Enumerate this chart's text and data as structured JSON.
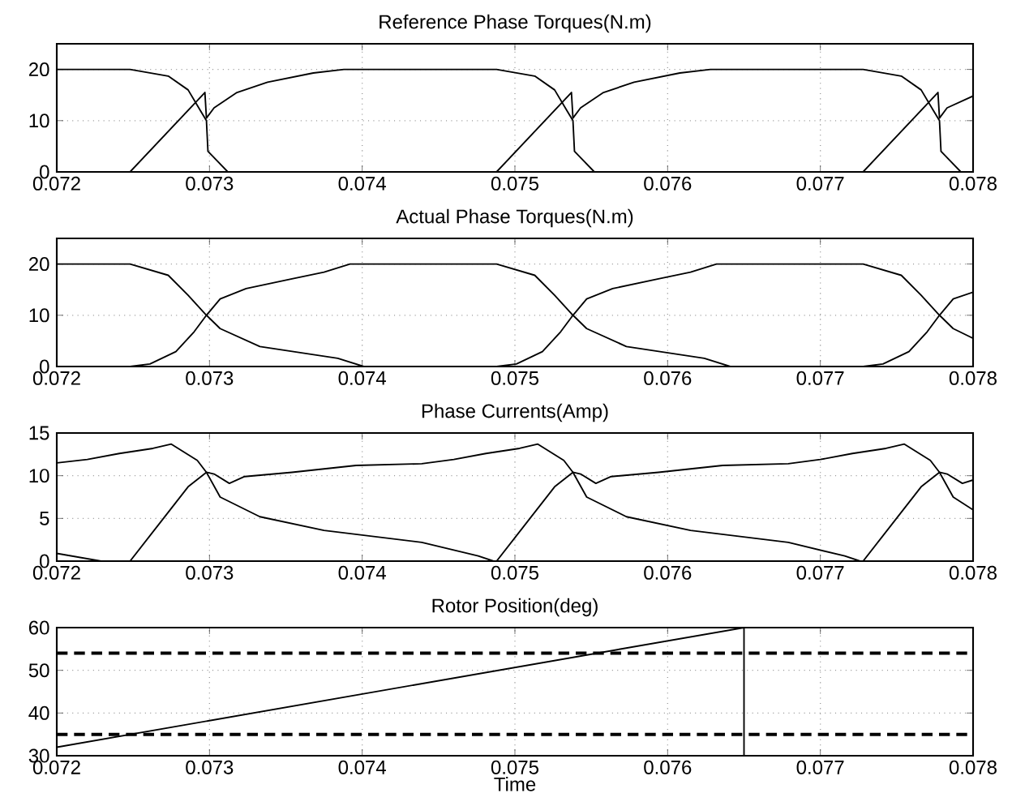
{
  "chart_data": [
    {
      "type": "line",
      "title": "Reference Phase Torques(N.m)",
      "xlim": [
        0.072,
        0.078
      ],
      "ylim": [
        0,
        25
      ],
      "xticks": [
        0.072,
        0.073,
        0.074,
        0.075,
        0.076,
        0.077,
        0.078
      ],
      "yticks": [
        0,
        10,
        20
      ],
      "grid": true,
      "series": [
        {
          "color": "#000000",
          "x": [
            0.072,
            0.07248,
            0.07273,
            0.07286,
            0.07294,
            0.07298,
            0.07299,
            0.07312,
            0.0752,
            0.07728,
            0.07777,
            0.07778,
            0.07783,
            0.078
          ],
          "values": [
            20,
            20,
            18.7,
            16,
            12,
            10,
            4,
            0,
            null,
            0,
            15.5,
            10.5,
            12.5,
            14.8
          ]
        },
        {
          "color": "#000000",
          "x": [
            0.07248,
            0.07297,
            0.07298,
            0.07303,
            0.07318,
            0.07338,
            0.07368,
            0.07388,
            0.07488,
            0.07513,
            0.07526,
            0.07534,
            0.07538,
            0.07539,
            0.07552
          ],
          "values": [
            0,
            15.5,
            10.5,
            12.5,
            15.5,
            17.5,
            19.3,
            20,
            20,
            18.7,
            16,
            12,
            10,
            4,
            0
          ]
        },
        {
          "color": "#000000",
          "x": [
            0.07488,
            0.07537,
            0.07538,
            0.07543,
            0.07558,
            0.07578,
            0.07608,
            0.07628,
            0.07728,
            0.07753,
            0.07766,
            0.07774,
            0.07778,
            0.07779,
            0.07792
          ],
          "values": [
            0,
            15.5,
            10.5,
            12.5,
            15.5,
            17.5,
            19.3,
            20,
            20,
            18.7,
            16,
            12,
            10,
            4,
            0
          ]
        }
      ]
    },
    {
      "type": "line",
      "title": "Actual Phase Torques(N.m)",
      "xlim": [
        0.072,
        0.078
      ],
      "ylim": [
        0,
        25
      ],
      "xticks": [
        0.072,
        0.073,
        0.074,
        0.075,
        0.076,
        0.077,
        0.078
      ],
      "yticks": [
        0,
        10,
        20
      ],
      "grid": true,
      "series": [
        {
          "color": "#000000",
          "x": [
            0.072,
            0.07248,
            0.07273,
            0.07286,
            0.07298,
            0.07307,
            0.07333,
            0.07384,
            0.07401,
            0.0756,
            0.07728,
            0.07741,
            0.07758,
            0.0777,
            0.07778,
            0.07787,
            0.078
          ],
          "values": [
            20,
            20,
            17.8,
            13.9,
            10,
            7.4,
            3.9,
            1.6,
            0,
            null,
            0,
            0.5,
            2.9,
            6.8,
            10,
            13.2,
            14.5
          ]
        },
        {
          "color": "#000000",
          "x": [
            0.07248,
            0.07261,
            0.07278,
            0.0729,
            0.07298,
            0.07307,
            0.07324,
            0.07354,
            0.07375,
            0.07392,
            0.07488,
            0.07513,
            0.07526,
            0.07538,
            0.07547,
            0.07573,
            0.07624,
            0.07641
          ],
          "values": [
            0,
            0.5,
            2.9,
            6.8,
            10,
            13.2,
            15.2,
            17.1,
            18.4,
            20,
            20,
            17.8,
            13.9,
            10,
            7.4,
            3.9,
            1.6,
            0
          ]
        },
        {
          "color": "#000000",
          "x": [
            0.07488,
            0.07501,
            0.07518,
            0.0753,
            0.07538,
            0.07547,
            0.07564,
            0.07594,
            0.07615,
            0.07632,
            0.07728,
            0.07753,
            0.07766,
            0.07778,
            0.07787,
            0.078
          ],
          "values": [
            0,
            0.5,
            2.9,
            6.8,
            10,
            13.2,
            15.2,
            17.1,
            18.4,
            20,
            20,
            17.8,
            13.9,
            10,
            7.4,
            5.5
          ]
        }
      ]
    },
    {
      "type": "line",
      "title": "Phase Currents(Amp)",
      "xlim": [
        0.072,
        0.078
      ],
      "ylim": [
        0,
        15
      ],
      "xticks": [
        0.072,
        0.073,
        0.074,
        0.075,
        0.076,
        0.077,
        0.078
      ],
      "yticks": [
        0,
        5,
        10,
        15
      ],
      "grid": true,
      "series": [
        {
          "color": "#000000",
          "x": [
            0.072,
            0.0722,
            0.07241,
            0.07263,
            0.07275,
            0.07292,
            0.07298,
            0.07307,
            0.07333,
            0.07375,
            0.07439,
            0.07476,
            0.07486,
            0.0761,
            0.07728,
            0.07749,
            0.07766,
            0.07778,
            0.07783,
            0.07793,
            0.078
          ],
          "values": [
            11.5,
            11.9,
            12.6,
            13.2,
            13.7,
            11.8,
            10.4,
            7.5,
            5.2,
            3.6,
            2.2,
            0.6,
            0,
            null,
            0,
            4.8,
            8.7,
            10.4,
            10.2,
            9.1,
            9.5
          ]
        },
        {
          "color": "#000000",
          "x": [
            0.07248,
            0.07269,
            0.07286,
            0.07298,
            0.07303,
            0.07313,
            0.07323,
            0.07354,
            0.07396,
            0.07439,
            0.0746,
            0.07481,
            0.07503,
            0.07515,
            0.07532,
            0.07538,
            0.07547,
            0.07573,
            0.07615,
            0.07679,
            0.07716,
            0.07726
          ],
          "values": [
            0,
            4.8,
            8.7,
            10.4,
            10.2,
            9.1,
            9.9,
            10.4,
            11.2,
            11.4,
            11.9,
            12.6,
            13.2,
            13.7,
            11.8,
            10.4,
            7.5,
            5.2,
            3.6,
            2.2,
            0.6,
            0
          ]
        },
        {
          "color": "#000000",
          "x": [
            0.07488,
            0.07509,
            0.07526,
            0.07538,
            0.07543,
            0.07553,
            0.07563,
            0.07594,
            0.07636,
            0.07679,
            0.077,
            0.07721,
            0.07743,
            0.07755,
            0.07772,
            0.07778,
            0.07787,
            0.078
          ],
          "values": [
            0,
            4.8,
            8.7,
            10.4,
            10.2,
            9.1,
            9.9,
            10.4,
            11.2,
            11.4,
            11.9,
            12.6,
            13.2,
            13.7,
            11.8,
            10.4,
            7.5,
            6.0
          ]
        },
        {
          "color": "#000000",
          "x": [
            0.072,
            0.07229
          ],
          "values": [
            0.9,
            0
          ]
        }
      ]
    },
    {
      "type": "line",
      "title": "Rotor Position(deg)",
      "xlabel": "Time",
      "xlim": [
        0.072,
        0.078
      ],
      "ylim": [
        30,
        60
      ],
      "xticks": [
        0.072,
        0.073,
        0.074,
        0.075,
        0.076,
        0.077,
        0.078
      ],
      "yticks": [
        30,
        40,
        50,
        60
      ],
      "grid": true,
      "series": [
        {
          "color": "#000000",
          "x": [
            0.072,
            0.0765,
            0.0765
          ],
          "values": [
            32,
            60,
            30
          ]
        }
      ],
      "ref_lines": [
        {
          "axis": "y",
          "value": 54,
          "color": "#000000",
          "line_style": "dashed"
        },
        {
          "axis": "y",
          "value": 35,
          "color": "#000000",
          "line_style": "dashed"
        }
      ]
    }
  ]
}
